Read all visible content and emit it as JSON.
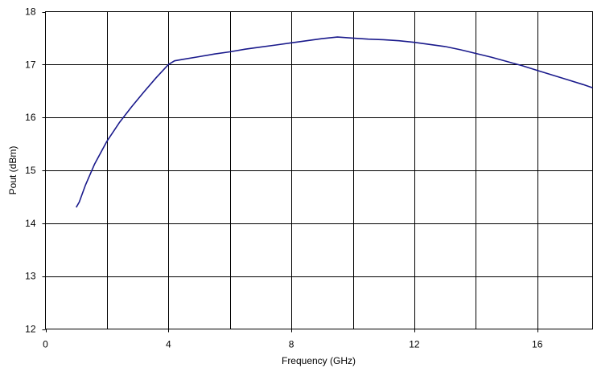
{
  "chart_data": {
    "type": "line",
    "title": "",
    "xlabel": "Frequency (GHz)",
    "ylabel": "Pout (dBm)",
    "xlim": [
      0,
      17.8
    ],
    "ylim": [
      12,
      18
    ],
    "x_ticks": [
      0,
      4,
      8,
      12,
      16
    ],
    "y_ticks": [
      12,
      13,
      14,
      15,
      16,
      17,
      18
    ],
    "x_tick_labels": [
      "0",
      "4",
      "8",
      "12",
      "16"
    ],
    "y_tick_labels": [
      "12",
      "13",
      "14",
      "15",
      "16",
      "17",
      "18"
    ],
    "x_grid_lines": [
      2,
      4,
      6,
      8,
      10,
      12,
      14,
      16
    ],
    "grid": true,
    "legend": "none",
    "series": [
      {
        "color": "#1a1a8c",
        "x": [
          1.0,
          1.1,
          1.3,
          1.6,
          2.0,
          2.4,
          2.8,
          3.2,
          3.6,
          4.0,
          4.2,
          4.5,
          5.0,
          5.5,
          6.0,
          6.5,
          7.0,
          7.5,
          8.0,
          8.5,
          9.0,
          9.5,
          10.0,
          10.5,
          11.0,
          11.5,
          12.0,
          12.5,
          13.0,
          13.5,
          14.0,
          14.5,
          15.0,
          15.5,
          16.0,
          16.5,
          17.0,
          17.5,
          17.8
        ],
        "y": [
          14.3,
          14.4,
          14.72,
          15.12,
          15.55,
          15.9,
          16.2,
          16.48,
          16.75,
          17.0,
          17.07,
          17.1,
          17.15,
          17.2,
          17.24,
          17.29,
          17.33,
          17.37,
          17.41,
          17.45,
          17.49,
          17.52,
          17.5,
          17.48,
          17.47,
          17.45,
          17.42,
          17.38,
          17.34,
          17.28,
          17.21,
          17.14,
          17.06,
          16.98,
          16.89,
          16.8,
          16.71,
          16.62,
          16.56
        ]
      }
    ]
  }
}
